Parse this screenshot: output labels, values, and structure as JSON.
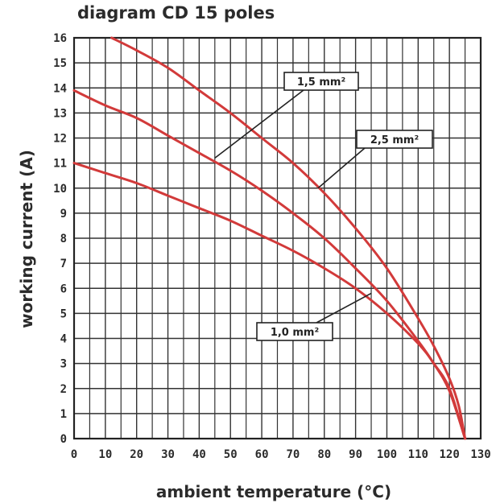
{
  "chart_data": {
    "type": "line",
    "title": "diagram CD 15 poles",
    "xlabel": "ambient temperature (°C)",
    "ylabel": "working current (A)",
    "xlim": [
      0,
      130
    ],
    "ylim": [
      0,
      16
    ],
    "x_ticks": [
      "0",
      "10",
      "20",
      "30",
      "40",
      "50",
      "60",
      "70",
      "80",
      "90",
      "100",
      "110",
      "120",
      "130"
    ],
    "y_ticks": [
      "0",
      "1",
      "2",
      "3",
      "4",
      "5",
      "6",
      "7",
      "8",
      "9",
      "10",
      "11",
      "12",
      "13",
      "14",
      "15",
      "16"
    ],
    "grid": true,
    "line_color": "#d23a3a",
    "series": [
      {
        "name": "1,5 mm²",
        "x": [
          12,
          20,
          30,
          40,
          50,
          60,
          70,
          80,
          90,
          100,
          110,
          115,
          120,
          123,
          125
        ],
        "y": [
          16,
          15.5,
          14.8,
          13.9,
          13.0,
          12.0,
          11.0,
          9.8,
          8.4,
          6.8,
          4.8,
          3.7,
          2.4,
          1.3,
          0
        ]
      },
      {
        "name": "2,5 mm²",
        "x": [
          0,
          10,
          20,
          30,
          40,
          50,
          60,
          70,
          80,
          90,
          100,
          110,
          115,
          120,
          125
        ],
        "y": [
          13.9,
          13.3,
          12.8,
          12.1,
          11.4,
          10.7,
          9.9,
          9.0,
          8.0,
          6.8,
          5.5,
          3.9,
          3.0,
          1.9,
          0
        ]
      },
      {
        "name": "1,0 mm²",
        "x": [
          0,
          10,
          20,
          30,
          40,
          50,
          60,
          70,
          80,
          90,
          100,
          110,
          115,
          120,
          125
        ],
        "y": [
          11.0,
          10.6,
          10.2,
          9.7,
          9.2,
          8.7,
          8.1,
          7.5,
          6.8,
          6.0,
          5.0,
          3.8,
          3.0,
          2.0,
          0
        ]
      }
    ],
    "callouts": [
      {
        "label": "1,5 mm²",
        "series": "1,5 mm²"
      },
      {
        "label": "2,5 mm²",
        "series": "2,5 mm²"
      },
      {
        "label": "1,0 mm²",
        "series": "1,0 mm²"
      }
    ]
  }
}
